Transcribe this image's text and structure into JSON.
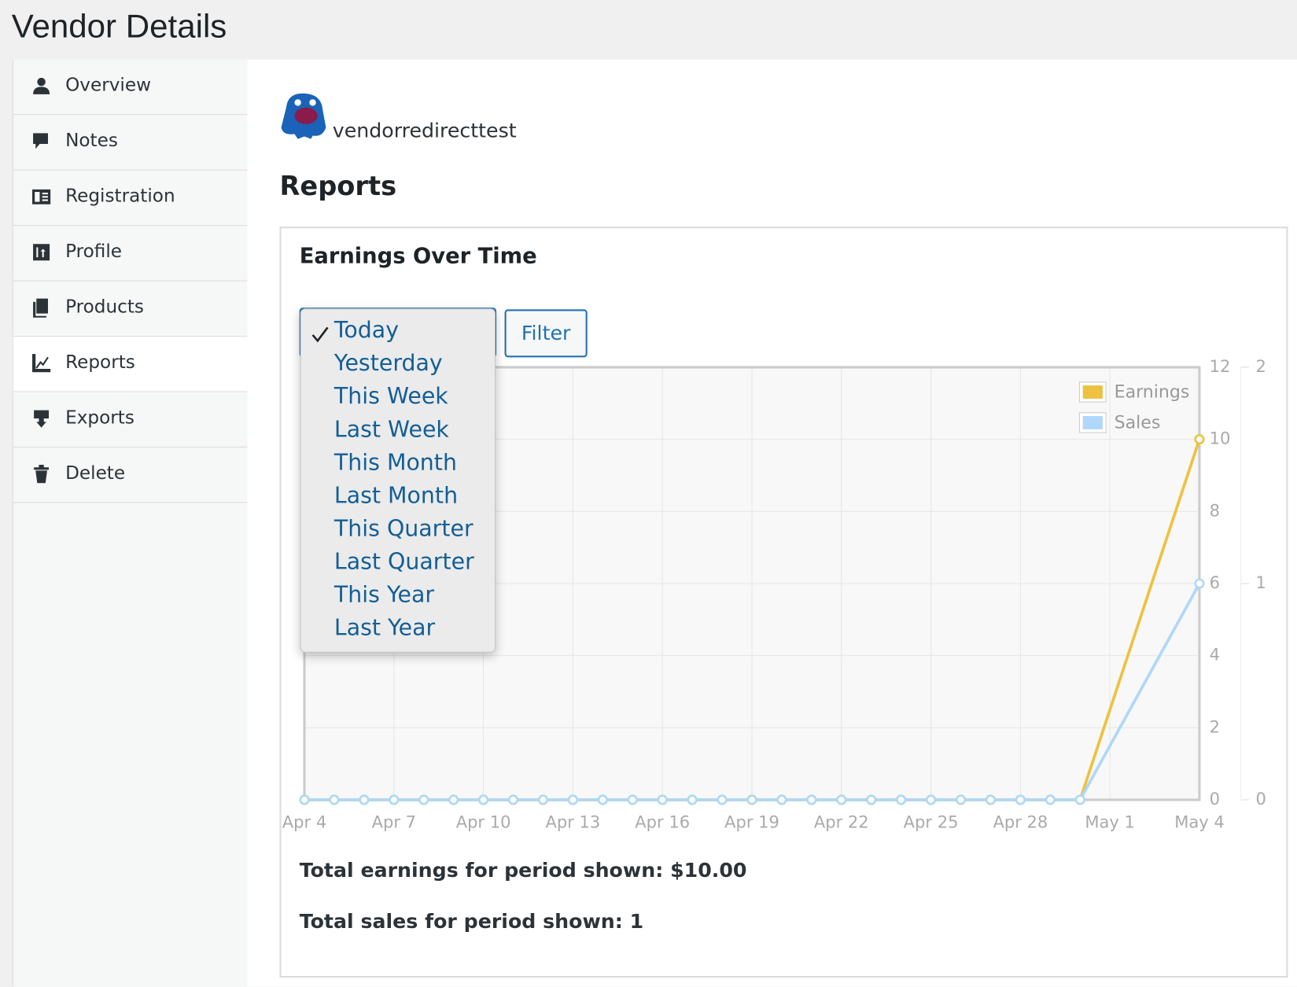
{
  "header": {
    "title": "Vendor Details"
  },
  "nav": [
    {
      "label": "Overview"
    },
    {
      "label": "Notes"
    },
    {
      "label": "Registration"
    },
    {
      "label": "Profile"
    },
    {
      "label": "Products"
    },
    {
      "label": "Reports",
      "active": true
    },
    {
      "label": "Exports"
    },
    {
      "label": "Delete"
    }
  ],
  "vendor": {
    "name": "vendorredirecttest"
  },
  "section": {
    "title": "Reports"
  },
  "report": {
    "title": "Earnings Over Time",
    "dropdown": {
      "options": [
        "Today",
        "Yesterday",
        "This Week",
        "Last Week",
        "This Month",
        "Last Month",
        "This Quarter",
        "Last Quarter",
        "This Year",
        "Last Year"
      ],
      "selected": 0
    },
    "button": "Filter",
    "totals": [
      "Total earnings for period shown: $10.00",
      "Total sales for period shown: 1"
    ]
  },
  "chart_data": {
    "type": "line",
    "x": [
      "Apr 4",
      "Apr 5",
      "Apr 6",
      "Apr 7",
      "Apr 8",
      "Apr 9",
      "Apr 10",
      "Apr 11",
      "Apr 12",
      "Apr 13",
      "Apr 14",
      "Apr 15",
      "Apr 16",
      "Apr 17",
      "Apr 18",
      "Apr 19",
      "Apr 20",
      "Apr 21",
      "Apr 22",
      "Apr 23",
      "Apr 24",
      "Apr 25",
      "Apr 26",
      "Apr 27",
      "Apr 28",
      "Apr 29",
      "Apr 30",
      "May 4"
    ],
    "xlim": [
      "Apr 4",
      "May 4"
    ],
    "xticks": [
      "Apr 4",
      "Apr 7",
      "Apr 10",
      "Apr 13",
      "Apr 16",
      "Apr 19",
      "Apr 22",
      "Apr 25",
      "Apr 28",
      "May 1",
      "May 4"
    ],
    "ylim": [
      0,
      12
    ],
    "yticks": [
      0,
      2,
      4,
      6,
      8,
      10,
      12
    ],
    "y2lim": [
      0,
      2
    ],
    "y2ticks": [
      0,
      1,
      2
    ],
    "grid": true,
    "legend": "top-right",
    "series": [
      {
        "name": "Earnings",
        "color": "#edc240",
        "values": [
          0,
          0,
          0,
          0,
          0,
          0,
          0,
          0,
          0,
          0,
          0,
          0,
          0,
          0,
          0,
          0,
          0,
          0,
          0,
          0,
          0,
          0,
          0,
          0,
          0,
          0,
          0,
          10
        ]
      },
      {
        "name": "Sales",
        "color": "#afd8f8",
        "axis": "y2",
        "values": [
          0,
          0,
          0,
          0,
          0,
          0,
          0,
          0,
          0,
          0,
          0,
          0,
          0,
          0,
          0,
          0,
          0,
          0,
          0,
          0,
          0,
          0,
          0,
          0,
          0,
          0,
          0,
          1
        ]
      }
    ]
  }
}
